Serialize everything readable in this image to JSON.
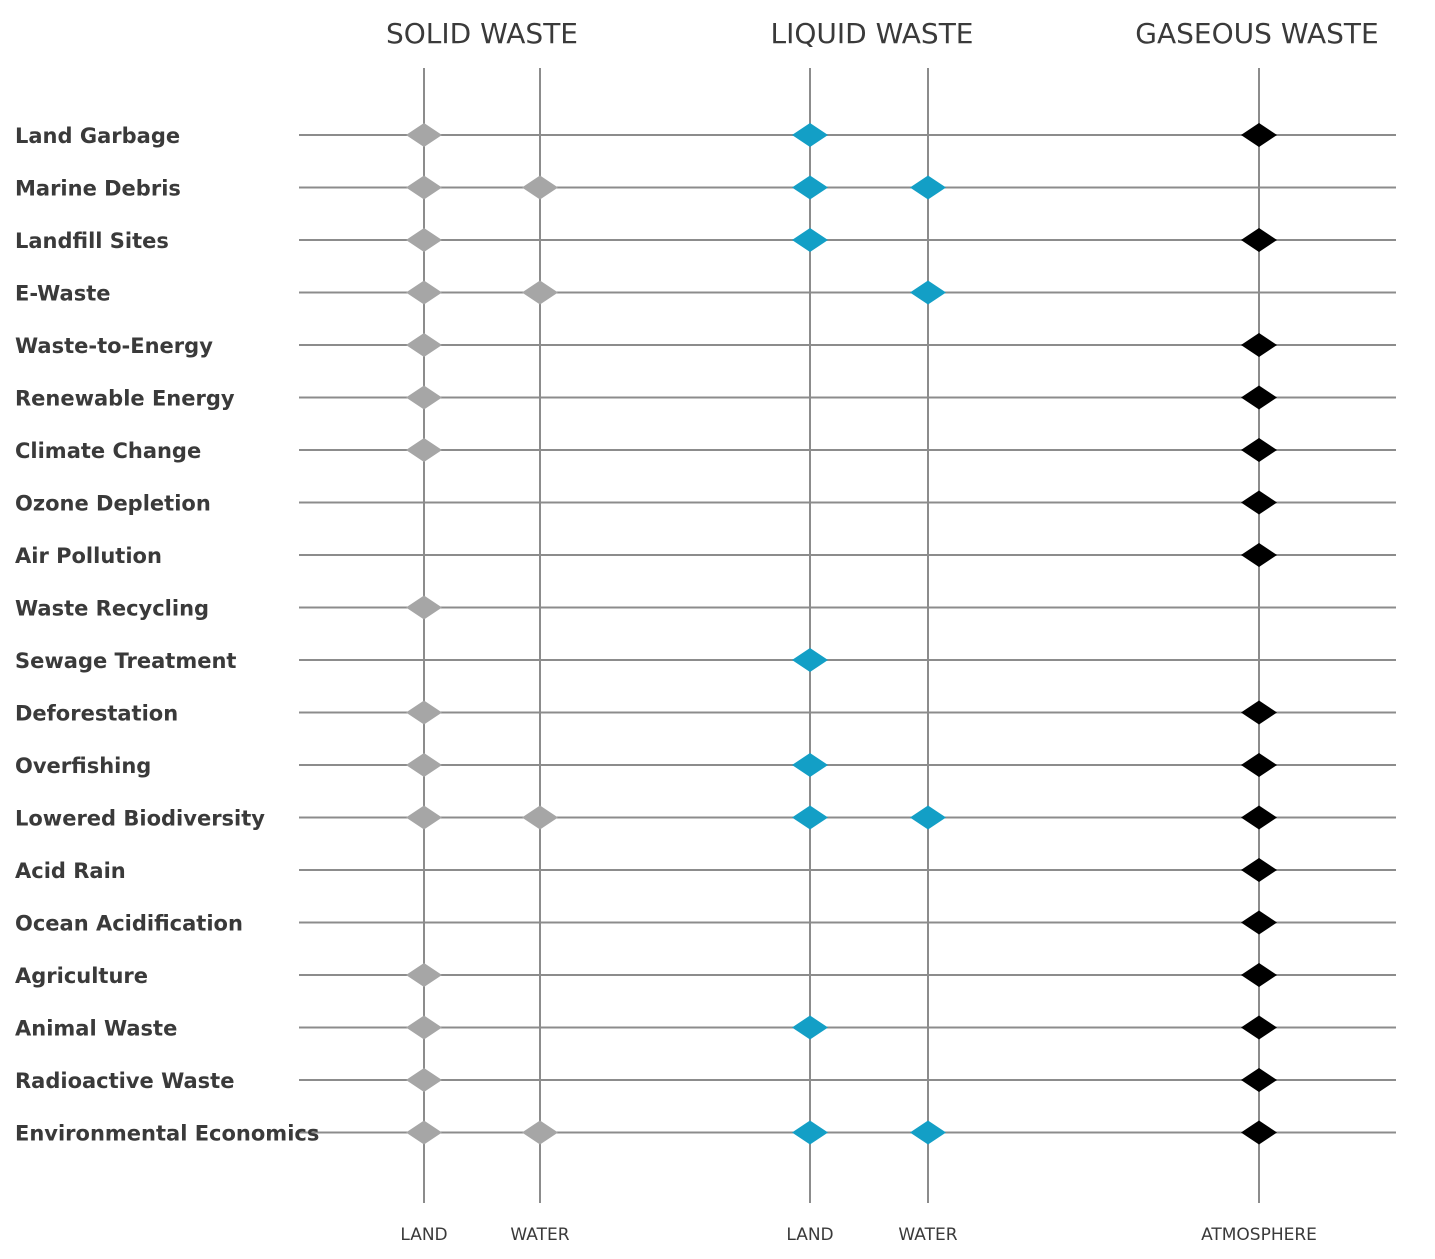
{
  "chart_data": {
    "type": "scatter",
    "groups": [
      {
        "label": "SOLID WASTE",
        "columns": [
          0,
          1
        ]
      },
      {
        "label": "LIQUID WASTE",
        "columns": [
          2,
          3
        ]
      },
      {
        "label": "GASEOUS WASTE",
        "columns": [
          4
        ]
      }
    ],
    "columns": [
      {
        "label": "LAND",
        "group": "SOLID WASTE",
        "color": "#a6a6a6"
      },
      {
        "label": "WATER",
        "group": "SOLID WASTE",
        "color": "#a6a6a6"
      },
      {
        "label": "LAND",
        "group": "LIQUID WASTE",
        "color": "#139fc6"
      },
      {
        "label": "WATER",
        "group": "LIQUID WASTE",
        "color": "#139fc6"
      },
      {
        "label": "ATMOSPHERE",
        "group": "GASEOUS WASTE",
        "color": "#000000"
      }
    ],
    "rows": [
      {
        "label": "Land Garbage",
        "marks": [
          1,
          0,
          1,
          0,
          1
        ]
      },
      {
        "label": "Marine Debris",
        "marks": [
          1,
          1,
          1,
          1,
          0
        ]
      },
      {
        "label": "Landfill Sites",
        "marks": [
          1,
          0,
          1,
          0,
          1
        ]
      },
      {
        "label": "E-Waste",
        "marks": [
          1,
          1,
          0,
          1,
          0
        ]
      },
      {
        "label": "Waste-to-Energy",
        "marks": [
          1,
          0,
          0,
          0,
          1
        ]
      },
      {
        "label": "Renewable Energy",
        "marks": [
          1,
          0,
          0,
          0,
          1
        ]
      },
      {
        "label": "Climate Change",
        "marks": [
          1,
          0,
          0,
          0,
          1
        ]
      },
      {
        "label": "Ozone Depletion",
        "marks": [
          0,
          0,
          0,
          0,
          1
        ]
      },
      {
        "label": "Air Pollution",
        "marks": [
          0,
          0,
          0,
          0,
          1
        ]
      },
      {
        "label": "Waste Recycling",
        "marks": [
          1,
          0,
          0,
          0,
          0
        ]
      },
      {
        "label": "Sewage Treatment",
        "marks": [
          0,
          0,
          1,
          0,
          0
        ]
      },
      {
        "label": "Deforestation",
        "marks": [
          1,
          0,
          0,
          0,
          1
        ]
      },
      {
        "label": "Overfishing",
        "marks": [
          1,
          0,
          1,
          0,
          1
        ]
      },
      {
        "label": "Lowered Biodiversity",
        "marks": [
          1,
          1,
          1,
          1,
          1
        ]
      },
      {
        "label": "Acid Rain",
        "marks": [
          0,
          0,
          0,
          0,
          1
        ]
      },
      {
        "label": "Ocean Acidification",
        "marks": [
          0,
          0,
          0,
          0,
          1
        ]
      },
      {
        "label": "Agriculture",
        "marks": [
          1,
          0,
          0,
          0,
          1
        ]
      },
      {
        "label": "Animal Waste",
        "marks": [
          1,
          0,
          1,
          0,
          1
        ]
      },
      {
        "label": "Radioactive Waste",
        "marks": [
          1,
          0,
          0,
          0,
          1
        ]
      },
      {
        "label": "Environmental Economics",
        "marks": [
          1,
          1,
          1,
          1,
          1
        ]
      }
    ],
    "legend": "none",
    "grid": true
  }
}
